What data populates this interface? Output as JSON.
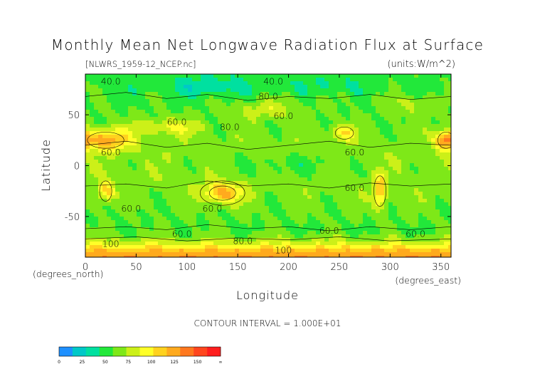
{
  "chart_data": {
    "type": "heatmap",
    "title": "Monthly Mean Net Longwave Radiation Flux at Surface",
    "subtitle_left": "[NLWRS_1959-12_NCEP.nc]",
    "subtitle_right": "(units:W/m^2)",
    "xlabel": "Longitude",
    "ylabel": "Latitude",
    "x_unit_label": "(degrees_east)",
    "y_unit_label": "(degrees_north)",
    "xlim": [
      0,
      360
    ],
    "ylim": [
      -90,
      90
    ],
    "x_ticks": [
      0,
      50,
      100,
      150,
      200,
      250,
      300,
      350
    ],
    "y_ticks": [
      -50,
      0,
      50
    ],
    "contour_interval_text": "CONTOUR INTERVAL = 1.000E+01",
    "contour_labels": [
      {
        "text": "40.0",
        "lon": 25,
        "lat": 80
      },
      {
        "text": "40.0",
        "lon": 185,
        "lat": 80
      },
      {
        "text": "80.0",
        "lon": 180,
        "lat": 65
      },
      {
        "text": "60.0",
        "lon": 90,
        "lat": 40
      },
      {
        "text": "80.0",
        "lon": 142,
        "lat": 35
      },
      {
        "text": "60.0",
        "lon": 195,
        "lat": 46
      },
      {
        "text": "60.0",
        "lon": 25,
        "lat": 10
      },
      {
        "text": "60.0",
        "lon": 265,
        "lat": 10
      },
      {
        "text": "60.0",
        "lon": 265,
        "lat": -25
      },
      {
        "text": "60.0",
        "lon": 45,
        "lat": -45
      },
      {
        "text": "60.0",
        "lon": 125,
        "lat": -45
      },
      {
        "text": "60.0",
        "lon": 95,
        "lat": -70
      },
      {
        "text": "60.0",
        "lon": 240,
        "lat": -67
      },
      {
        "text": "60.0",
        "lon": 325,
        "lat": -70
      },
      {
        "text": "100",
        "lon": 25,
        "lat": -80
      },
      {
        "text": "80.0",
        "lon": 155,
        "lat": -77
      },
      {
        "text": "100",
        "lon": 195,
        "lat": -86
      }
    ],
    "colorbar": {
      "ticks": [
        "0",
        "25",
        "50",
        "75",
        "100",
        "125",
        "150",
        "∞"
      ],
      "colors": [
        "#1e90ff",
        "#00c8c8",
        "#00e0a0",
        "#22e83a",
        "#7ee818",
        "#ccf018",
        "#ffff28",
        "#ffd21e",
        "#ffaa1e",
        "#ff781e",
        "#ff461e",
        "#ff1e1e"
      ]
    }
  }
}
